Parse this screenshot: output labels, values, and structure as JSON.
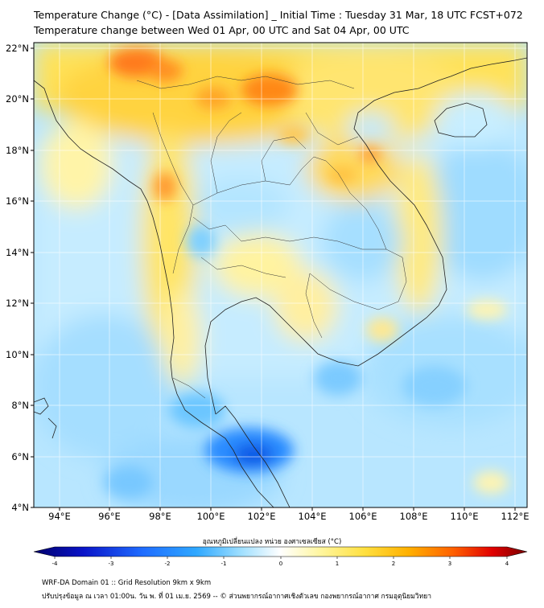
{
  "header": {
    "title_line1": "Temperature Change (°C) - [Data Assimilation] _ Initial Time : Tuesday 31 Mar, 18 UTC FCST+072",
    "title_line2": "Temperature change between Wed 01 Apr, 00 UTC and Sat 04 Apr, 00 UTC"
  },
  "map": {
    "lon_ticks": [
      "94°E",
      "96°E",
      "98°E",
      "100°E",
      "102°E",
      "104°E",
      "106°E",
      "108°E",
      "110°E",
      "112°E"
    ],
    "lat_ticks": [
      "22°N",
      "20°N",
      "18°N",
      "16°N",
      "14°N",
      "12°N",
      "10°N",
      "8°N",
      "6°N",
      "4°N"
    ],
    "lon_range": [
      93,
      112.5
    ],
    "lat_range": [
      4,
      22.2
    ]
  },
  "colorbar": {
    "title": "อุณหภูมิเปลี่ยนแปลง หน่วย องศาเซลเซียส (°C)",
    "tick_values": [
      -4,
      -3,
      -2,
      -1,
      0,
      1,
      2,
      3,
      4
    ],
    "tick_labels": [
      "-4",
      "-3",
      "-2",
      "-1",
      "0",
      "1",
      "2",
      "3",
      "4"
    ],
    "colors": [
      "#00006b",
      "#0a14c8",
      "#1f6cff",
      "#2fa8ff",
      "#6fd0ff",
      "#bdeaff",
      "#ffffff",
      "#fff6a0",
      "#ffe040",
      "#ffb000",
      "#ff7000",
      "#e60000",
      "#780000"
    ]
  },
  "footer": {
    "line1": "WRF-DA Domain 01 :: Grid Resolution 9km x 9km",
    "line2": "ปรับปรุงข้อมูล ณ เวลา 01:00น. วัน พ. ที่ 01 เม.ย. 2569 -- © ส่วนพยากรณ์อากาศเชิงตัวเลข กองพยากรณ์อากาศ กรมอุตุนิยมวิทยา"
  }
}
